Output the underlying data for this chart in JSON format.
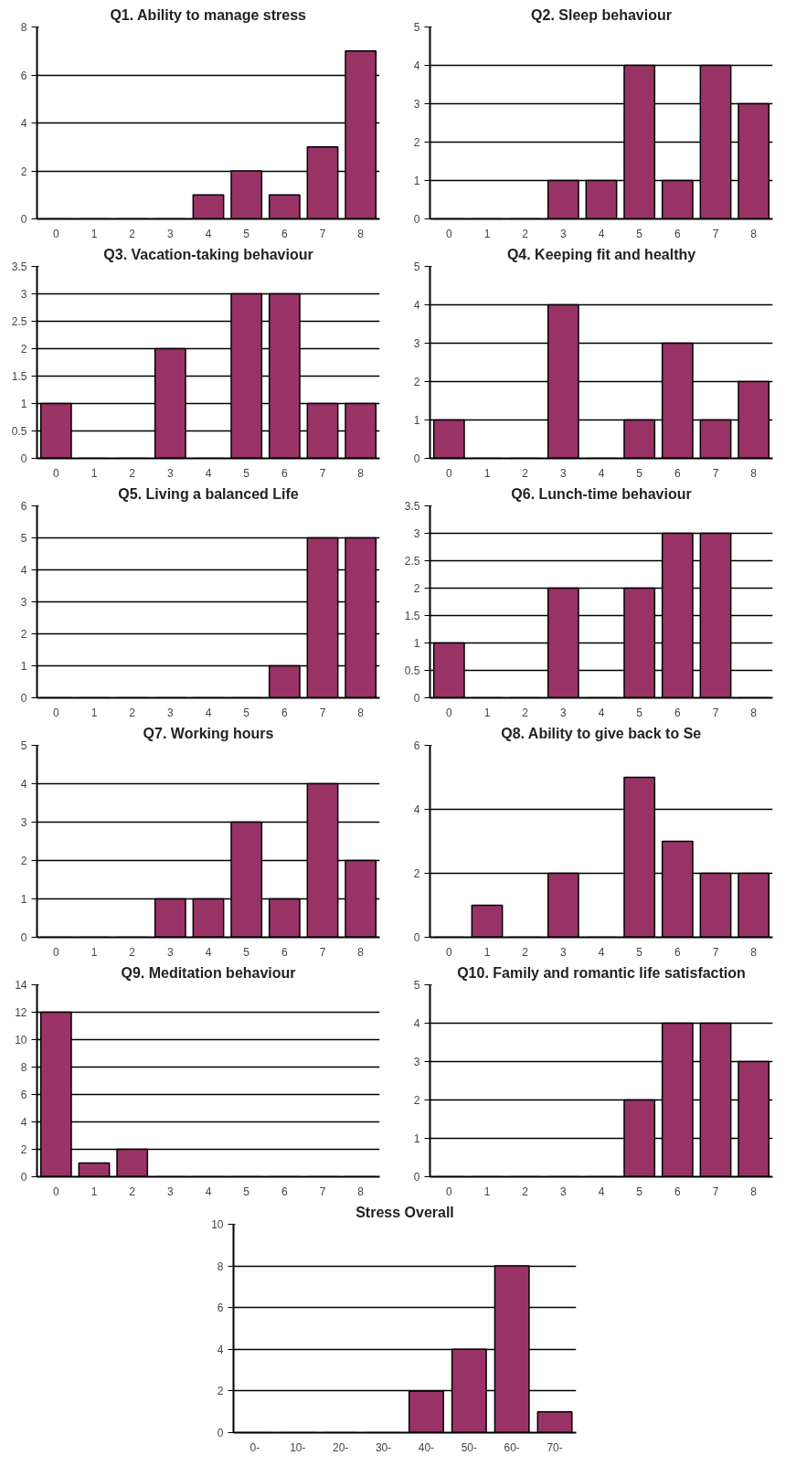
{
  "chart_data": [
    {
      "type": "bar",
      "title": "Q1. Ability to manage stress",
      "categories": [
        "0",
        "1",
        "2",
        "3",
        "4",
        "5",
        "6",
        "7",
        "8"
      ],
      "values": [
        0,
        0,
        0,
        0,
        1,
        2,
        1,
        3,
        7
      ],
      "color": "#993366",
      "ylim": [
        0,
        8
      ],
      "yticks": [
        0,
        2,
        4,
        6,
        8
      ],
      "grid": "y"
    },
    {
      "type": "bar",
      "title": "Q2. Sleep behaviour",
      "categories": [
        "0",
        "1",
        "2",
        "3",
        "4",
        "5",
        "6",
        "7",
        "8"
      ],
      "values": [
        0,
        0,
        0,
        1,
        1,
        4,
        1,
        4,
        3
      ],
      "color": "#993366",
      "ylim": [
        0,
        5
      ],
      "yticks": [
        0,
        1,
        2,
        3,
        4,
        5
      ],
      "grid": "y"
    },
    {
      "type": "bar",
      "title": "Q3. Vacation-taking behaviour",
      "categories": [
        "0",
        "1",
        "2",
        "3",
        "4",
        "5",
        "6",
        "7",
        "8"
      ],
      "values": [
        1,
        0,
        0,
        2,
        0,
        3,
        3,
        1,
        1
      ],
      "color": "#993366",
      "ylim": [
        0,
        3.5
      ],
      "yticks": [
        0,
        0.5,
        1,
        1.5,
        2,
        2.5,
        3,
        3.5
      ],
      "grid": "y"
    },
    {
      "type": "bar",
      "title": "Q4. Keeping fit and healthy",
      "categories": [
        "0",
        "1",
        "2",
        "3",
        "4",
        "5",
        "6",
        "7",
        "8"
      ],
      "values": [
        1,
        0,
        0,
        4,
        0,
        1,
        3,
        1,
        2
      ],
      "color": "#993366",
      "ylim": [
        0,
        5
      ],
      "yticks": [
        0,
        1,
        2,
        3,
        4,
        5
      ],
      "grid": "y"
    },
    {
      "type": "bar",
      "title": "Q5. Living a balanced Life",
      "categories": [
        "0",
        "1",
        "2",
        "3",
        "4",
        "5",
        "6",
        "7",
        "8"
      ],
      "values": [
        0,
        0,
        0,
        0,
        0,
        0,
        1,
        5,
        5
      ],
      "color": "#993366",
      "ylim": [
        0,
        6
      ],
      "yticks": [
        0,
        1,
        2,
        3,
        4,
        5,
        6
      ],
      "grid": "y"
    },
    {
      "type": "bar",
      "title": "Q6. Lunch-time behaviour",
      "categories": [
        "0",
        "1",
        "2",
        "3",
        "4",
        "5",
        "6",
        "7",
        "8"
      ],
      "values": [
        1,
        0,
        0,
        2,
        0,
        2,
        3,
        3,
        0
      ],
      "color": "#993366",
      "ylim": [
        0,
        3.5
      ],
      "yticks": [
        0,
        0.5,
        1,
        1.5,
        2,
        2.5,
        3,
        3.5
      ],
      "grid": "y"
    },
    {
      "type": "bar",
      "title": "Q7. Working hours",
      "categories": [
        "0",
        "1",
        "2",
        "3",
        "4",
        "5",
        "6",
        "7",
        "8"
      ],
      "values": [
        0,
        0,
        0,
        1,
        1,
        3,
        1,
        4,
        2
      ],
      "color": "#993366",
      "ylim": [
        0,
        5
      ],
      "yticks": [
        0,
        1,
        2,
        3,
        4,
        5
      ],
      "grid": "y"
    },
    {
      "type": "bar",
      "title": "Q8. Ability to give back to Se",
      "categories": [
        "0",
        "1",
        "2",
        "3",
        "4",
        "5",
        "6",
        "7",
        "8"
      ],
      "values": [
        0,
        1,
        0,
        2,
        0,
        5,
        3,
        2,
        2
      ],
      "color": "#993366",
      "ylim": [
        0,
        6
      ],
      "yticks": [
        0,
        2,
        4,
        6
      ],
      "grid": "y"
    },
    {
      "type": "bar",
      "title": "Q9. Meditation behaviour",
      "categories": [
        "0",
        "1",
        "2",
        "3",
        "4",
        "5",
        "6",
        "7",
        "8"
      ],
      "values": [
        12,
        1,
        2,
        0,
        0,
        0,
        0,
        0,
        0
      ],
      "color": "#993366",
      "ylim": [
        0,
        14
      ],
      "yticks": [
        0,
        2,
        4,
        6,
        8,
        10,
        12,
        14
      ],
      "grid": "y"
    },
    {
      "type": "bar",
      "title": "Q10. Family and romantic life satisfaction",
      "categories": [
        "0",
        "1",
        "2",
        "3",
        "4",
        "5",
        "6",
        "7",
        "8"
      ],
      "values": [
        0,
        0,
        0,
        0,
        0,
        2,
        4,
        4,
        3
      ],
      "color": "#993366",
      "ylim": [
        0,
        5
      ],
      "yticks": [
        0,
        1,
        2,
        3,
        4,
        5
      ],
      "grid": "y"
    },
    {
      "type": "bar",
      "title": "Stress Overall",
      "categories": [
        "0-",
        "10-",
        "20-",
        "30-",
        "40-",
        "50-",
        "60-",
        "70-"
      ],
      "values": [
        0,
        0,
        0,
        0,
        2,
        4,
        8,
        1
      ],
      "color": "#993366",
      "ylim": [
        0,
        10
      ],
      "yticks": [
        0,
        2,
        4,
        6,
        8,
        10
      ],
      "grid": "y"
    }
  ]
}
